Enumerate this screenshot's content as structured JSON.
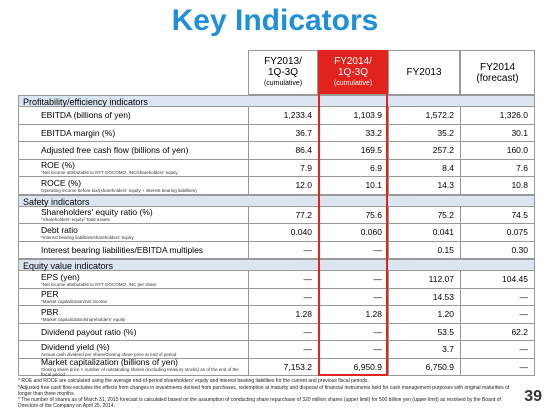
{
  "title": "Key Indicators",
  "table": {
    "columns": [
      {
        "lines": [
          "FY2013/",
          "1Q-3Q",
          "(cumulative)"
        ]
      },
      {
        "lines": [
          "FY2014/",
          "1Q-3Q",
          "(cumulative)"
        ]
      },
      {
        "lines": [
          "FY2013"
        ]
      },
      {
        "lines": [
          "FY2014",
          "(forecast)"
        ]
      }
    ],
    "sections": [
      {
        "title": "Profitability/efficiency indicators",
        "rows": [
          {
            "label": "EBITDA (billions of yen)",
            "values": [
              "1,233.4",
              "1,103.9",
              "1,572.2",
              "1,326.0"
            ]
          },
          {
            "label": "EBITDA margin (%)",
            "values": [
              "36.7",
              "33.2",
              "35.2",
              "30.1"
            ]
          },
          {
            "label": "Adjusted free cash flow (billions of yen)",
            "values": [
              "86.4",
              "169.5",
              "257.2",
              "160.0"
            ]
          },
          {
            "label": "ROE (%)",
            "note": "*Net income attributable to NTT DOCOMO, INC/shareholders' equity",
            "values": [
              "7.9",
              "6.9",
              "8.4",
              "7.6"
            ]
          },
          {
            "label": "ROCE (%)",
            "note": "Operating income before tax/(shareholders' equity + interest bearing liabilities)",
            "values": [
              "12.0",
              "10.1",
              "14.3",
              "10.8"
            ]
          }
        ]
      },
      {
        "title": "Safety indicators",
        "rows": [
          {
            "label": "Shareholders' equity ratio (%)",
            "note": "*Shareholders' equity/ Total assets",
            "values": [
              "77.2",
              "75.6",
              "75.2",
              "74.5"
            ]
          },
          {
            "label": "Debt ratio",
            "note": "*Interest bearing liabilities/shareholders' equity",
            "values": [
              "0.040",
              "0.060",
              "0.041",
              "0.075"
            ]
          },
          {
            "label": "Interest bearing liabilities/EBITDA multiples",
            "values": [
              "—",
              "—",
              "0.15",
              "0.30"
            ]
          }
        ]
      },
      {
        "title": "Equity value indicators",
        "rows": [
          {
            "label": "EPS (yen)",
            "note": "*Net income attributable to NTT DOCOMO, INC per share",
            "values": [
              "—",
              "—",
              "112.07",
              "104.45"
            ]
          },
          {
            "label": "PER",
            "note": "*Market capitalization/net income",
            "values": [
              "—",
              "—",
              "14.53",
              "—"
            ]
          },
          {
            "label": "PBR",
            "note": "*Market capitalization/shareholders' equity",
            "values": [
              "1.28",
              "1.28",
              "1.20",
              "—"
            ]
          },
          {
            "label": "Dividend payout ratio (%)",
            "values": [
              "—",
              "—",
              "53.5",
              "62.2"
            ]
          },
          {
            "label": "Dividend yield (%)",
            "note": "Annual cash dividend per share/Closing share price at end of period",
            "values": [
              "—",
              "—",
              "3.7",
              "—"
            ]
          },
          {
            "label": "Market capitalization (billions of yen)",
            "note": "Closing share price × number of outstanding shares (excluding treasury stocks) as of the end of the fiscal period",
            "values": [
              "7,153.2",
              "6,950.9",
              "6,750.9",
              "—"
            ]
          }
        ]
      }
    ]
  },
  "footnotes": [
    "* ROE and ROCE are calculated using the average end-of-period shareholders' equity and interest bearing liabilities for the current and previous fiscal periods.",
    "*Adjusted free cash flow excludes the effects from changes in investments derived from purchases, redemption at maturity and disposal of financial instruments held for cash management purposes with original maturities of longer than three months.",
    "* The number of shares as of March 31, 2015 forecast is calculated based on the assumption of conducting share repurchase of 320 million shares (upper limit) for 500 billion yen (upper limit) as resolved by the Board of Directors of the Company on April 25, 2014."
  ],
  "page_number": "39"
}
